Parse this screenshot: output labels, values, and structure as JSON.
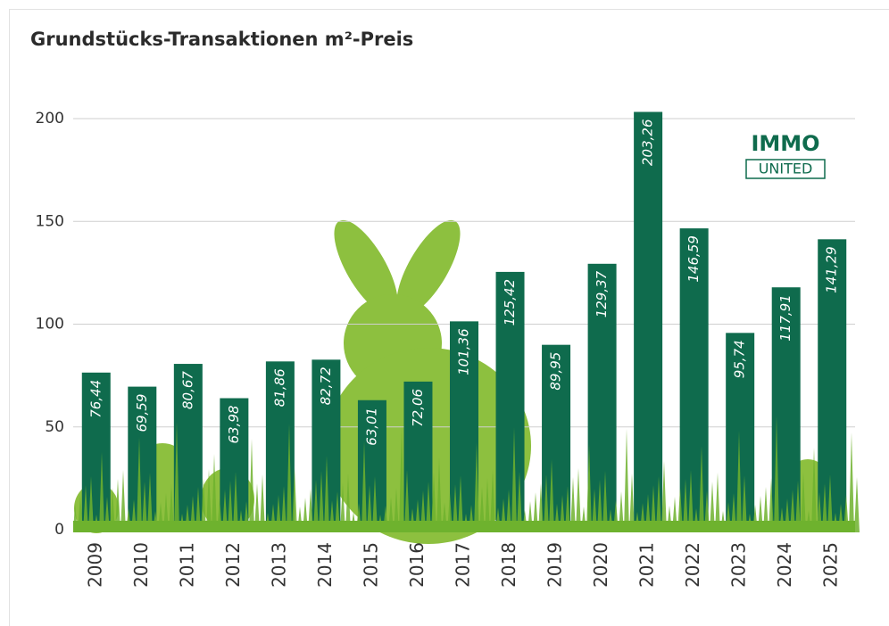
{
  "chart_data": {
    "type": "bar",
    "title": "Grundstücks-Transaktionen m²-Preis",
    "categories": [
      "2009",
      "2010",
      "2011",
      "2012",
      "2013",
      "2014",
      "2015",
      "2016",
      "2017",
      "2018",
      "2019",
      "2020",
      "2021",
      "2022",
      "2023",
      "2024",
      "2025"
    ],
    "values": [
      76.44,
      69.59,
      80.67,
      63.98,
      81.86,
      82.72,
      63.01,
      72.06,
      101.36,
      125.42,
      89.95,
      129.37,
      203.26,
      146.59,
      95.74,
      117.91,
      141.29
    ],
    "value_labels": [
      "76,44",
      "69,59",
      "80,67",
      "63,98",
      "81,86",
      "82,72",
      "63,01",
      "72,06",
      "101,36",
      "125,42",
      "89,95",
      "129,37",
      "203,26",
      "146,59",
      "95,74",
      "117,91",
      "141,29"
    ],
    "color": "#0f6b4d",
    "ylim": [
      0,
      200
    ],
    "yticks": [
      0,
      50,
      100,
      150,
      200
    ],
    "grid": true,
    "annotations": [
      "IMMO",
      "UNITED"
    ]
  }
}
